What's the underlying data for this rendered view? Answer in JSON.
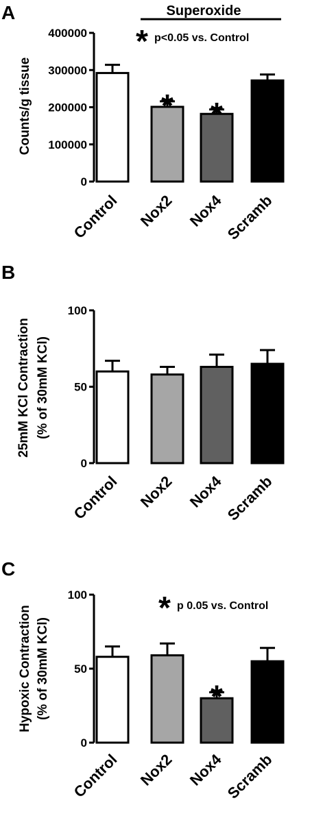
{
  "chart_data": [
    {
      "panel": "A",
      "type": "bar",
      "title": "Superoxide",
      "ylabel": "Counts/g tissue",
      "categories": [
        "Control",
        "Nox2",
        "Nox4",
        "Scramb"
      ],
      "values": [
        292000,
        201000,
        182000,
        272000
      ],
      "errors": [
        22000,
        15000,
        12000,
        16000
      ],
      "colors": [
        "#ffffff",
        "#a6a6a6",
        "#606060",
        "#000000"
      ],
      "significant": [
        false,
        true,
        true,
        false
      ],
      "ylim": [
        0,
        400000
      ],
      "yticks": [
        0,
        100000,
        200000,
        300000,
        400000
      ],
      "ytick_labels": [
        "0",
        "100000",
        "200000",
        "300000",
        "400000"
      ],
      "legend_symbol": "*",
      "legend_text": "p<0.05 vs. Control"
    },
    {
      "panel": "B",
      "type": "bar",
      "title": "",
      "ylabel": "25mM KCl Contraction",
      "ylabel2": "(% of 30mM KCl)",
      "categories": [
        "Control",
        "Nox2",
        "Nox4",
        "Scramb"
      ],
      "values": [
        60,
        58,
        63,
        65
      ],
      "errors": [
        7,
        5,
        8,
        9
      ],
      "colors": [
        "#ffffff",
        "#a6a6a6",
        "#606060",
        "#000000"
      ],
      "significant": [
        false,
        false,
        false,
        false
      ],
      "ylim": [
        0,
        100
      ],
      "yticks": [
        0,
        50,
        100
      ],
      "ytick_labels": [
        "0",
        "50",
        "100"
      ],
      "legend_symbol": "",
      "legend_text": ""
    },
    {
      "panel": "C",
      "type": "bar",
      "title": "",
      "ylabel": "Hypoxic Contraction",
      "ylabel2": "(% of 30mM KCl)",
      "categories": [
        "Control",
        "Nox2",
        "Nox4",
        "Scramb"
      ],
      "values": [
        58,
        59,
        30,
        55
      ],
      "errors": [
        7,
        8,
        4,
        9
      ],
      "colors": [
        "#ffffff",
        "#a6a6a6",
        "#606060",
        "#000000"
      ],
      "significant": [
        false,
        false,
        true,
        false
      ],
      "ylim": [
        0,
        100
      ],
      "yticks": [
        0,
        50,
        100
      ],
      "ytick_labels": [
        "0",
        "50",
        "100"
      ],
      "legend_symbol": "*",
      "legend_text": "p 0.05 vs. Control"
    }
  ]
}
